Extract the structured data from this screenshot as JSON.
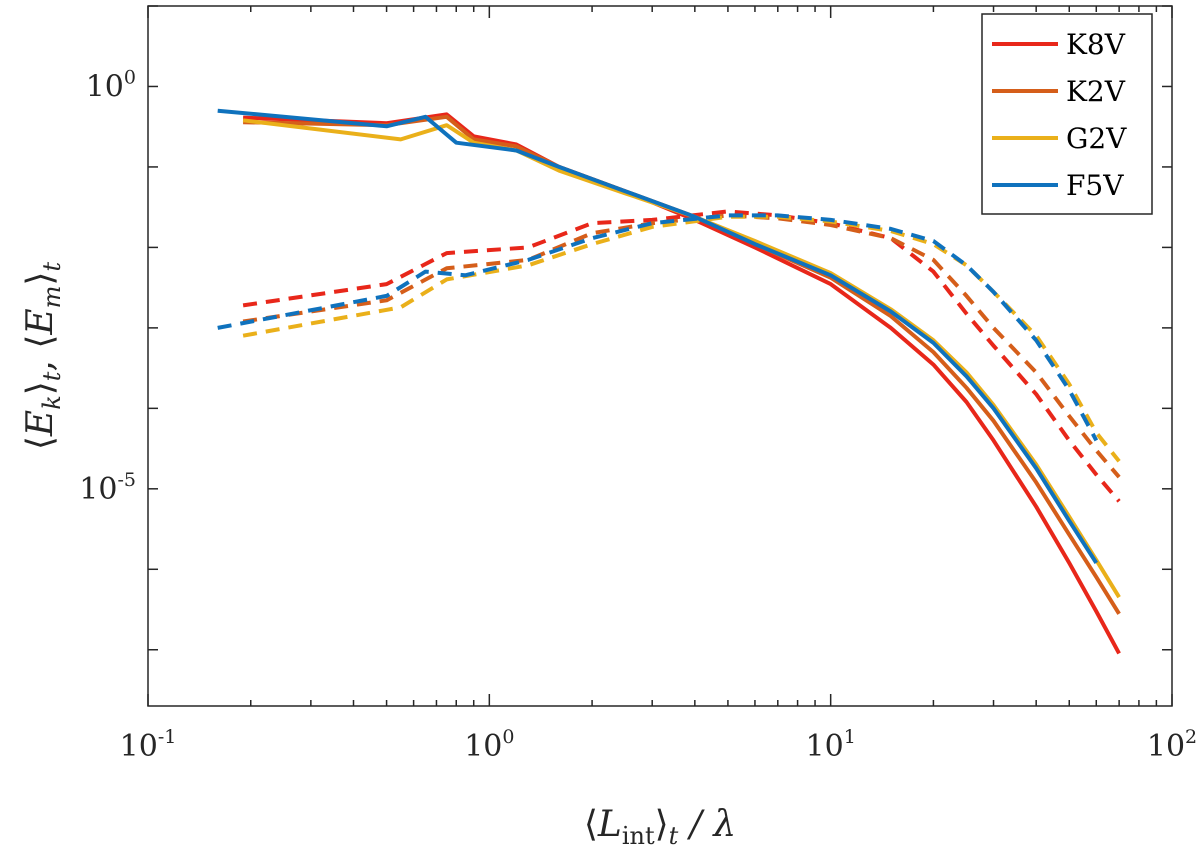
{
  "chart_data": {
    "type": "line",
    "xscale": "log",
    "yscale": "log",
    "xlim": [
      0.1,
      100
    ],
    "ylim": [
      2e-08,
      10
    ],
    "xlabel": "⟨L_int⟩_t / λ",
    "ylabel": "⟨E_k⟩_t , ⟨E_m⟩_t",
    "grid": false,
    "legend_position": "top-right",
    "xticks": [
      {
        "value": 0.1,
        "base": "10",
        "exp": "-1"
      },
      {
        "value": 1,
        "base": "10",
        "exp": "0"
      },
      {
        "value": 10,
        "base": "10",
        "exp": "1"
      },
      {
        "value": 100,
        "base": "10",
        "exp": "2"
      }
    ],
    "yticks": [
      {
        "value": 1,
        "base": "10",
        "exp": "0"
      },
      {
        "value": 1e-05,
        "base": "10",
        "exp": "-5"
      }
    ],
    "series": [
      {
        "name": "K8V",
        "color": "#e8271a",
        "kinetic": [
          [
            0.19,
            0.41
          ],
          [
            0.5,
            0.35
          ],
          [
            0.75,
            0.45
          ],
          [
            0.9,
            0.24
          ],
          [
            1.2,
            0.19
          ],
          [
            1.6,
            0.1
          ],
          [
            2.5,
            0.05
          ],
          [
            4,
            0.022
          ],
          [
            6,
            0.01
          ],
          [
            10,
            0.0035
          ],
          [
            15,
            0.001
          ],
          [
            20,
            0.00035
          ],
          [
            25,
            0.00012
          ],
          [
            30,
            4e-05
          ],
          [
            40,
            6e-06
          ],
          [
            50,
            1.2e-06
          ],
          [
            60,
            3e-07
          ],
          [
            70,
            9e-08
          ]
        ],
        "magnetic": [
          [
            0.19,
            0.0019
          ],
          [
            0.5,
            0.0035
          ],
          [
            0.75,
            0.0085
          ],
          [
            1.3,
            0.01
          ],
          [
            2,
            0.02
          ],
          [
            3,
            0.022
          ],
          [
            5,
            0.028
          ],
          [
            7,
            0.025
          ],
          [
            10,
            0.02
          ],
          [
            15,
            0.013
          ],
          [
            20,
            0.005
          ],
          [
            25,
            0.0015
          ],
          [
            30,
            0.0006
          ],
          [
            40,
            0.00015
          ],
          [
            50,
            4e-05
          ],
          [
            60,
            1.5e-05
          ],
          [
            70,
            7e-06
          ]
        ]
      },
      {
        "name": "K2V",
        "color": "#d55e1a",
        "kinetic": [
          [
            0.19,
            0.36
          ],
          [
            0.5,
            0.33
          ],
          [
            0.75,
            0.42
          ],
          [
            0.9,
            0.22
          ],
          [
            1.2,
            0.18
          ],
          [
            1.6,
            0.1
          ],
          [
            2.5,
            0.05
          ],
          [
            4,
            0.024
          ],
          [
            6,
            0.011
          ],
          [
            10,
            0.0042
          ],
          [
            15,
            0.0014
          ],
          [
            20,
            0.0005
          ],
          [
            25,
            0.00018
          ],
          [
            30,
            7e-05
          ],
          [
            40,
            1.2e-05
          ],
          [
            50,
            2.7e-06
          ],
          [
            60,
            8e-07
          ],
          [
            70,
            2.8e-07
          ]
        ],
        "magnetic": [
          [
            0.19,
            0.0012
          ],
          [
            0.5,
            0.0022
          ],
          [
            0.75,
            0.0055
          ],
          [
            1.3,
            0.007
          ],
          [
            2,
            0.015
          ],
          [
            3,
            0.02
          ],
          [
            5,
            0.025
          ],
          [
            7,
            0.023
          ],
          [
            10,
            0.019
          ],
          [
            15,
            0.013
          ],
          [
            20,
            0.007
          ],
          [
            25,
            0.0025
          ],
          [
            30,
            0.001
          ],
          [
            40,
            0.00028
          ],
          [
            50,
            8e-05
          ],
          [
            60,
            3e-05
          ],
          [
            70,
            1.4e-05
          ]
        ]
      },
      {
        "name": "G2V",
        "color": "#eab01a",
        "kinetic": [
          [
            0.19,
            0.38
          ],
          [
            0.55,
            0.22
          ],
          [
            0.75,
            0.33
          ],
          [
            0.9,
            0.2
          ],
          [
            1.2,
            0.16
          ],
          [
            1.6,
            0.09
          ],
          [
            2.5,
            0.047
          ],
          [
            4,
            0.024
          ],
          [
            6,
            0.012
          ],
          [
            10,
            0.0048
          ],
          [
            15,
            0.0017
          ],
          [
            20,
            0.0007
          ],
          [
            25,
            0.00028
          ],
          [
            30,
            0.00011
          ],
          [
            40,
            2e-05
          ],
          [
            50,
            4.5e-06
          ],
          [
            60,
            1.3e-06
          ],
          [
            70,
            4.5e-07
          ]
        ],
        "magnetic": [
          [
            0.19,
            0.0008
          ],
          [
            0.55,
            0.0018
          ],
          [
            0.75,
            0.004
          ],
          [
            1.3,
            0.006
          ],
          [
            2,
            0.011
          ],
          [
            3,
            0.018
          ],
          [
            5,
            0.024
          ],
          [
            7,
            0.024
          ],
          [
            10,
            0.021
          ],
          [
            15,
            0.016
          ],
          [
            20,
            0.011
          ],
          [
            25,
            0.006
          ],
          [
            30,
            0.0028
          ],
          [
            40,
            0.0008
          ],
          [
            50,
            0.0002
          ],
          [
            60,
            5e-05
          ],
          [
            70,
            2.2e-05
          ]
        ]
      },
      {
        "name": "F5V",
        "color": "#0f72bd",
        "kinetic": [
          [
            0.16,
            0.5
          ],
          [
            0.5,
            0.32
          ],
          [
            0.65,
            0.42
          ],
          [
            0.8,
            0.2
          ],
          [
            1.2,
            0.16
          ],
          [
            1.6,
            0.1
          ],
          [
            2.5,
            0.05
          ],
          [
            4,
            0.024
          ],
          [
            6,
            0.011
          ],
          [
            10,
            0.0045
          ],
          [
            15,
            0.0016
          ],
          [
            20,
            0.00065
          ],
          [
            25,
            0.00025
          ],
          [
            30,
            0.0001
          ],
          [
            40,
            1.8e-05
          ],
          [
            50,
            4e-06
          ],
          [
            60,
            1.2e-06
          ]
        ],
        "magnetic": [
          [
            0.16,
            0.001
          ],
          [
            0.5,
            0.0025
          ],
          [
            0.65,
            0.005
          ],
          [
            0.85,
            0.0045
          ],
          [
            1.3,
            0.007
          ],
          [
            2,
            0.013
          ],
          [
            3,
            0.02
          ],
          [
            5,
            0.025
          ],
          [
            7,
            0.025
          ],
          [
            10,
            0.022
          ],
          [
            15,
            0.017
          ],
          [
            20,
            0.012
          ],
          [
            25,
            0.006
          ],
          [
            30,
            0.0028
          ],
          [
            40,
            0.0007
          ],
          [
            50,
            0.00017
          ],
          [
            60,
            4e-05
          ]
        ]
      }
    ]
  }
}
